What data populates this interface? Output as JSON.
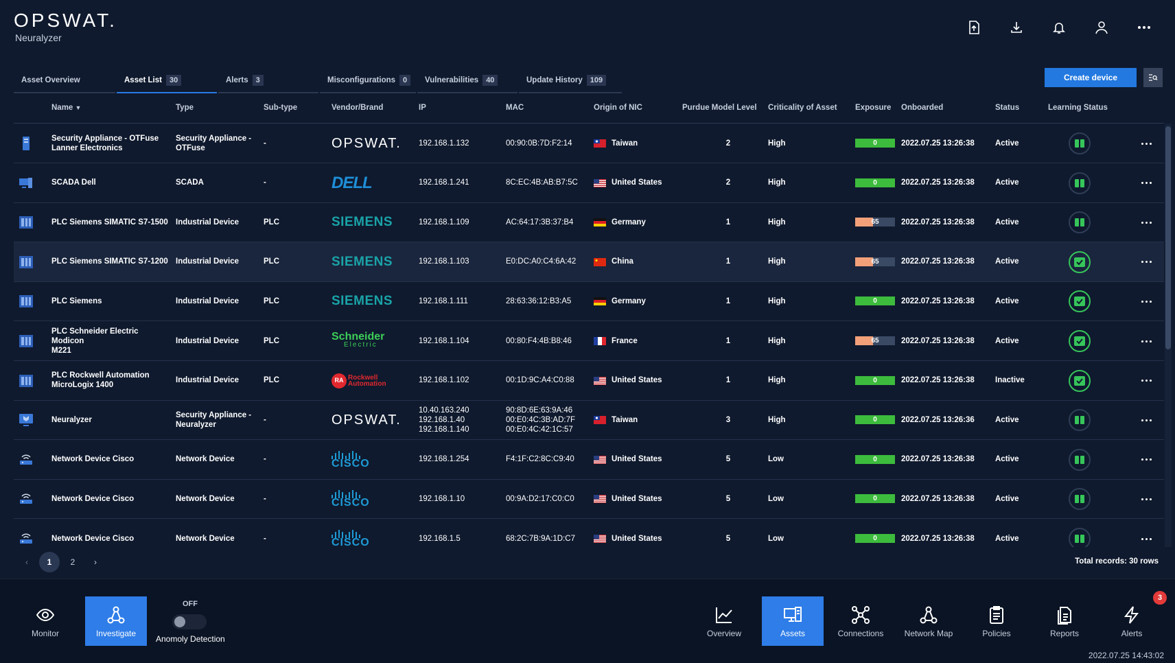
{
  "app": {
    "brand": "OPSWAT.",
    "product": "Neuralyzer"
  },
  "header_icons": [
    "upload-icon",
    "download-icon",
    "bell-icon",
    "user-icon",
    "more-icon"
  ],
  "tabs": [
    {
      "label": "Asset Overview",
      "count": ""
    },
    {
      "label": "Asset List",
      "count": "30"
    },
    {
      "label": "Alerts",
      "count": "3"
    },
    {
      "label": "Misconfigurations",
      "count": "0"
    },
    {
      "label": "Vulnerabilities",
      "count": "40"
    },
    {
      "label": "Update History",
      "count": "109"
    }
  ],
  "active_tab": "Asset List",
  "create_button": "Create device",
  "columns": {
    "name": "Name",
    "type": "Type",
    "subtype": "Sub-type",
    "vendor": "Vendor/Brand",
    "ip": "IP",
    "mac": "MAC",
    "origin": "Origin of NIC",
    "purdue": "Purdue Model Level",
    "criticality": "Criticality of Asset",
    "exposure": "Exposure",
    "onboarded": "Onboarded",
    "status": "Status",
    "learning": "Learning Status"
  },
  "sort": {
    "column": "Name",
    "direction": "descending"
  },
  "rows": [
    {
      "name": "Security Appliance - OTFuse\nLanner Electronics",
      "type": "Security Appliance -\nOTFuse",
      "subtype": "-",
      "vendor": "OPSWAT.",
      "ip": "192.168.1.132",
      "mac": "00:90:0B:7D:F2:14",
      "origin": "Taiwan",
      "purdue": "2",
      "criticality": "High",
      "exposure": "0",
      "onboarded": "2022.07.25 13:26:38",
      "status": "Active",
      "learning": "in-progress"
    },
    {
      "name": "SCADA Dell",
      "type": "SCADA",
      "subtype": "-",
      "vendor": "DELL",
      "ip": "192.168.1.241",
      "mac": "8C:EC:4B:AB:B7:5C",
      "origin": "United States",
      "purdue": "2",
      "criticality": "High",
      "exposure": "0",
      "onboarded": "2022.07.25 13:26:38",
      "status": "Active",
      "learning": "in-progress"
    },
    {
      "name": "PLC Siemens SIMATIC S7-1500",
      "type": "Industrial Device",
      "subtype": "PLC",
      "vendor": "SIEMENS",
      "ip": "192.168.1.109",
      "mac": "AC:64:17:3B:37:B4",
      "origin": "Germany",
      "purdue": "1",
      "criticality": "High",
      "exposure": "65",
      "onboarded": "2022.07.25 13:26:38",
      "status": "Active",
      "learning": "in-progress"
    },
    {
      "name": "PLC Siemens SIMATIC S7-1200",
      "type": "Industrial Device",
      "subtype": "PLC",
      "vendor": "SIEMENS",
      "ip": "192.168.1.103",
      "mac": "E0:DC:A0:C4:6A:42",
      "origin": "China",
      "purdue": "1",
      "criticality": "High",
      "exposure": "65",
      "onboarded": "2022.07.25 13:26:38",
      "status": "Active",
      "learning": "complete"
    },
    {
      "name": "PLC Siemens",
      "type": "Industrial Device",
      "subtype": "PLC",
      "vendor": "SIEMENS",
      "ip": "192.168.1.111",
      "mac": "28:63:36:12:B3:A5",
      "origin": "Germany",
      "purdue": "1",
      "criticality": "High",
      "exposure": "0",
      "onboarded": "2022.07.25 13:26:38",
      "status": "Active",
      "learning": "complete"
    },
    {
      "name": "PLC Schneider Electric Modicon\nM221",
      "type": "Industrial Device",
      "subtype": "PLC",
      "vendor": "Schneider Electric",
      "ip": "192.168.1.104",
      "mac": "00:80:F4:4B:B8:46",
      "origin": "France",
      "purdue": "1",
      "criticality": "High",
      "exposure": "65",
      "onboarded": "2022.07.25 13:26:38",
      "status": "Active",
      "learning": "complete"
    },
    {
      "name": "PLC Rockwell Automation\nMicroLogix 1400",
      "type": "Industrial Device",
      "subtype": "PLC",
      "vendor": "Rockwell Automation",
      "ip": "192.168.1.102",
      "mac": "00:1D:9C:A4:C0:88",
      "origin": "United States",
      "purdue": "1",
      "criticality": "High",
      "exposure": "0",
      "onboarded": "2022.07.25 13:26:38",
      "status": "Inactive",
      "learning": "complete"
    },
    {
      "name": "Neuralyzer",
      "type": "Security Appliance -\nNeuralyzer",
      "subtype": "-",
      "vendor": "OPSWAT.",
      "ip": "10.40.163.240\n192.168.1.40\n192.168.1.140",
      "mac": "90:8D:6E:63:9A:46\n00:E0:4C:3B:AD:7F\n00:E0:4C:42:1C:57",
      "origin": "Taiwan",
      "purdue": "3",
      "criticality": "High",
      "exposure": "0",
      "onboarded": "2022.07.25 13:26:36",
      "status": "Active",
      "learning": "in-progress"
    },
    {
      "name": "Network Device Cisco",
      "type": "Network Device",
      "subtype": "-",
      "vendor": "CISCO",
      "ip": "192.168.1.254",
      "mac": "F4:1F:C2:8C:C9:40",
      "origin": "United States",
      "purdue": "5",
      "criticality": "Low",
      "exposure": "0",
      "onboarded": "2022.07.25 13:26:38",
      "status": "Active",
      "learning": "in-progress"
    },
    {
      "name": "Network Device Cisco",
      "type": "Network Device",
      "subtype": "-",
      "vendor": "CISCO",
      "ip": "192.168.1.10",
      "mac": "00:9A:D2:17:C0:C0",
      "origin": "United States",
      "purdue": "5",
      "criticality": "Low",
      "exposure": "0",
      "onboarded": "2022.07.25 13:26:38",
      "status": "Active",
      "learning": "in-progress"
    },
    {
      "name": "Network Device Cisco",
      "type": "Network Device",
      "subtype": "-",
      "vendor": "CISCO",
      "ip": "192.168.1.5",
      "mac": "68:2C:7B:9A:1D:C7",
      "origin": "United States",
      "purdue": "5",
      "criticality": "Low",
      "exposure": "0",
      "onboarded": "2022.07.25 13:26:38",
      "status": "Active",
      "learning": "in-progress"
    }
  ],
  "pagination": {
    "pages": [
      "1",
      "2"
    ],
    "current": "1",
    "total": "Total records: 30 rows"
  },
  "bottom_nav": {
    "monitor": "Monitor",
    "investigate": "Investigate",
    "anomaly_state": "OFF",
    "anomaly_label": "Anomoly Detection",
    "right": [
      {
        "label": "Overview",
        "icon": "chart-icon"
      },
      {
        "label": "Assets",
        "icon": "assets-icon"
      },
      {
        "label": "Connections",
        "icon": "connections-icon"
      },
      {
        "label": "Network Map",
        "icon": "network-map-icon"
      },
      {
        "label": "Policies",
        "icon": "policies-icon"
      },
      {
        "label": "Reports",
        "icon": "reports-icon"
      },
      {
        "label": "Alerts",
        "icon": "alerts-icon"
      }
    ],
    "active": "Assets",
    "alerts_badge": "3"
  },
  "clock": "2022.07.25 14:43:02",
  "colors": {
    "accent": "#2379e0",
    "exposure_low": "#3dbb3d",
    "exposure_high": "#f2a07a",
    "learning_done": "#36c55a"
  }
}
